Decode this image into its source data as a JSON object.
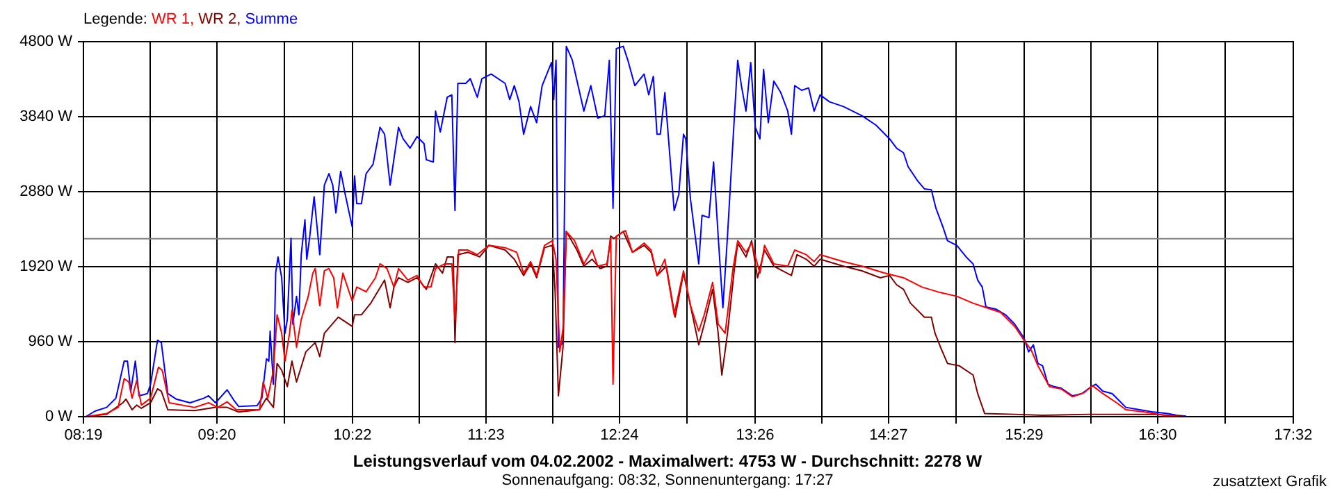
{
  "chart_data": {
    "type": "line",
    "title": "Leistungsverlauf vom 04.02.2002 - Maximalwert: 4753 W - Durchschnitt: 2278 W",
    "subtitle": "Sonnenaufgang: 08:32, Sonnenuntergang: 17:27",
    "legend_title": "Legende:",
    "annotations": [
      "zusatztext Grafik"
    ],
    "legend": "top left",
    "grid": true,
    "marker": "none",
    "line_style": "solid",
    "xlim": [
      8.3167,
      17.5333
    ],
    "xticks": [
      {
        "value": 8.3167,
        "label": "08:19"
      },
      {
        "value": 8.825,
        "label": null
      },
      {
        "value": 9.3333,
        "label": "09:20"
      },
      {
        "value": 9.85,
        "label": null
      },
      {
        "value": 10.3667,
        "label": "10:22"
      },
      {
        "value": 10.875,
        "label": null
      },
      {
        "value": 11.3833,
        "label": "11:23"
      },
      {
        "value": 11.8917,
        "label": null
      },
      {
        "value": 12.4,
        "label": "12:24"
      },
      {
        "value": 12.9167,
        "label": null
      },
      {
        "value": 13.4333,
        "label": "13:26"
      },
      {
        "value": 13.9417,
        "label": null
      },
      {
        "value": 14.45,
        "label": "14:27"
      },
      {
        "value": 14.9667,
        "label": null
      },
      {
        "value": 15.4833,
        "label": "15:29"
      },
      {
        "value": 15.9917,
        "label": null
      },
      {
        "value": 16.5,
        "label": "16:30"
      },
      {
        "value": 17.0167,
        "label": null
      },
      {
        "value": 17.5333,
        "label": "17:32"
      }
    ],
    "ylim": [
      0,
      4800
    ],
    "yticks": [
      {
        "value": 0,
        "label": "0 W"
      },
      {
        "value": 960,
        "label": "960 W"
      },
      {
        "value": 1920,
        "label": "1920 W"
      },
      {
        "value": 2880,
        "label": "2880 W"
      },
      {
        "value": 3840,
        "label": "3840 W"
      },
      {
        "value": 4800,
        "label": "4800 W"
      }
    ],
    "ref_lines": [
      {
        "axis": "y",
        "value": 2278,
        "color": "#808080"
      }
    ],
    "series": [
      {
        "name": "WR 1,",
        "color": "#ff0000",
        "x": [
          8.334,
          8.493,
          8.581,
          8.627,
          8.662,
          8.687,
          8.722,
          8.758,
          8.828,
          8.888,
          8.917,
          8.97,
          9.164,
          9.27,
          9.34,
          9.411,
          9.481,
          9.658,
          9.686,
          9.721,
          9.764,
          9.792,
          9.827,
          9.852,
          9.887,
          9.905,
          9.94,
          9.976,
          10.029,
          10.064,
          10.082,
          10.117,
          10.152,
          10.187,
          10.223,
          10.251,
          10.293,
          10.364,
          10.399,
          10.47,
          10.541,
          10.576,
          10.629,
          10.682,
          10.717,
          10.788,
          10.858,
          10.911,
          10.964,
          10.999,
          11.07,
          11.123,
          11.147,
          11.176,
          11.246,
          11.317,
          11.405,
          11.529,
          11.617,
          11.67,
          11.723,
          11.769,
          11.829,
          11.889,
          11.917,
          11.945,
          11.97,
          11.995,
          12.058,
          12.129,
          12.192,
          12.235,
          12.305,
          12.333,
          12.351,
          12.376,
          12.446,
          12.499,
          12.588,
          12.641,
          12.686,
          12.746,
          12.817,
          12.888,
          12.941,
          13.004,
          13.046,
          13.11,
          13.152,
          13.205,
          13.265,
          13.301,
          13.364,
          13.407,
          13.47,
          13.505,
          13.576,
          13.682,
          13.735,
          13.823,
          13.883,
          13.929,
          14.106,
          14.247,
          14.423,
          14.564,
          14.705,
          14.846,
          14.97,
          15.094,
          15.199,
          15.305,
          15.411,
          15.482,
          15.535,
          15.588,
          15.676,
          15.764,
          15.852,
          15.941,
          16.004,
          16.082,
          16.188,
          16.258,
          16.4,
          16.576,
          16.682
        ],
        "values": [
          0,
          41,
          119,
          486,
          444,
          237,
          462,
          148,
          237,
          634,
          593,
          178,
          119,
          178,
          119,
          190,
          89,
          89,
          444,
          237,
          593,
          1304,
          1067,
          711,
          1067,
          1363,
          889,
          1245,
          1541,
          1837,
          1896,
          1422,
          1867,
          1896,
          1778,
          1393,
          1837,
          1481,
          1659,
          1600,
          1778,
          1956,
          1896,
          1659,
          1896,
          1748,
          1807,
          1659,
          1659,
          1896,
          1956,
          1956,
          1244,
          2133,
          2133,
          2074,
          2193,
          2163,
          2104,
          1837,
          1985,
          1807,
          2193,
          2252,
          2015,
          830,
          1126,
          2370,
          2252,
          1956,
          2133,
          1926,
          1956,
          2282,
          415,
          2311,
          2382,
          2104,
          2222,
          2133,
          1807,
          2015,
          1304,
          1867,
          1422,
          1096,
          1304,
          1719,
          1185,
          1067,
          1896,
          2252,
          2104,
          2222,
          1837,
          2193,
          1956,
          1926,
          2133,
          2074,
          1985,
          2074,
          1985,
          1926,
          1837,
          1778,
          1659,
          1588,
          1541,
          1452,
          1393,
          1333,
          1156,
          978,
          859,
          652,
          385,
          356,
          255,
          308,
          397,
          296,
          178,
          89,
          59,
          12,
          0
        ]
      },
      {
        "name": "WR 2,",
        "color": "#800000",
        "x": [
          8.334,
          8.493,
          8.617,
          8.641,
          8.687,
          8.722,
          8.758,
          8.828,
          8.881,
          8.91,
          8.959,
          9.164,
          9.323,
          9.411,
          9.499,
          9.658,
          9.711,
          9.764,
          9.792,
          9.827,
          9.87,
          9.905,
          9.94,
          10.011,
          10.082,
          10.117,
          10.152,
          10.258,
          10.364,
          10.382,
          10.434,
          10.505,
          10.611,
          10.653,
          10.682,
          10.717,
          10.788,
          10.858,
          10.929,
          10.999,
          11.052,
          11.088,
          11.134,
          11.147,
          11.169,
          11.246,
          11.335,
          11.405,
          11.529,
          11.599,
          11.67,
          11.723,
          11.769,
          11.829,
          11.889,
          11.91,
          11.935,
          11.97,
          11.995,
          12.076,
          12.129,
          12.192,
          12.252,
          12.305,
          12.333,
          12.358,
          12.429,
          12.499,
          12.588,
          12.641,
          12.686,
          12.757,
          12.824,
          12.888,
          12.941,
          13.004,
          13.046,
          13.11,
          13.152,
          13.18,
          13.223,
          13.276,
          13.301,
          13.364,
          13.407,
          13.452,
          13.505,
          13.576,
          13.71,
          13.752,
          13.823,
          13.883,
          13.929,
          14.106,
          14.247,
          14.388,
          14.458,
          14.511,
          14.564,
          14.617,
          14.67,
          14.723,
          14.776,
          14.804,
          14.846,
          14.899,
          14.988,
          15.094,
          15.129,
          15.182,
          15.411,
          15.623,
          15.976,
          16.47,
          16.647,
          16.717
        ],
        "values": [
          0,
          30,
          178,
          225,
          89,
          148,
          107,
          178,
          356,
          326,
          89,
          77,
          119,
          119,
          59,
          89,
          237,
          119,
          681,
          593,
          385,
          711,
          444,
          830,
          948,
          770,
          1067,
          1274,
          1156,
          1304,
          1304,
          1452,
          1748,
          1393,
          1659,
          1778,
          1719,
          1778,
          1630,
          1956,
          1837,
          2045,
          2045,
          948,
          2074,
          2104,
          2045,
          2193,
          2133,
          2015,
          1807,
          1956,
          1778,
          2163,
          2193,
          1600,
          267,
          889,
          2370,
          2133,
          1926,
          2015,
          1896,
          1926,
          2311,
          2282,
          2370,
          2104,
          2193,
          2104,
          1807,
          1926,
          1274,
          1837,
          1422,
          919,
          1185,
          1630,
          1067,
          533,
          1067,
          1896,
          2222,
          2045,
          2252,
          1778,
          2133,
          1926,
          1807,
          2074,
          2015,
          1926,
          2015,
          1926,
          1867,
          1778,
          1807,
          1689,
          1630,
          1452,
          1363,
          1274,
          1274,
          1067,
          889,
          681,
          652,
          533,
          296,
          41,
          30,
          18,
          30,
          30,
          12,
          0
        ]
      },
      {
        "name": "Summe",
        "color": "#0000ff",
        "x": [
          8.334,
          8.405,
          8.493,
          8.564,
          8.627,
          8.652,
          8.677,
          8.712,
          8.74,
          8.804,
          8.828,
          8.881,
          8.91,
          8.959,
          9.023,
          9.129,
          9.234,
          9.27,
          9.323,
          9.411,
          9.464,
          9.499,
          9.64,
          9.676,
          9.711,
          9.729,
          9.739,
          9.764,
          9.781,
          9.799,
          9.827,
          9.852,
          9.87,
          9.898,
          9.912,
          9.94,
          9.958,
          9.976,
          10.004,
          10.018,
          10.039,
          10.074,
          10.117,
          10.152,
          10.187,
          10.216,
          10.24,
          10.276,
          10.311,
          10.364,
          10.382,
          10.399,
          10.434,
          10.47,
          10.523,
          10.576,
          10.611,
          10.653,
          10.717,
          10.752,
          10.805,
          10.858,
          10.911,
          10.929,
          10.982,
          10.999,
          11.035,
          11.088,
          11.123,
          11.147,
          11.169,
          11.229,
          11.264,
          11.317,
          11.352,
          11.423,
          11.529,
          11.564,
          11.599,
          11.635,
          11.67,
          11.723,
          11.769,
          11.811,
          11.882,
          11.899,
          11.917,
          11.935,
          11.97,
          11.995,
          12.041,
          12.093,
          12.129,
          12.182,
          12.235,
          12.288,
          12.323,
          12.351,
          12.376,
          12.429,
          12.464,
          12.517,
          12.588,
          12.623,
          12.658,
          12.686,
          12.711,
          12.746,
          12.817,
          12.852,
          12.888,
          12.905,
          12.941,
          13.004,
          13.029,
          13.082,
          13.117,
          13.152,
          13.188,
          13.223,
          13.276,
          13.301,
          13.329,
          13.364,
          13.4,
          13.435,
          13.47,
          13.498,
          13.534,
          13.576,
          13.629,
          13.682,
          13.71,
          13.735,
          13.788,
          13.841,
          13.883,
          13.929,
          14.0,
          14.106,
          14.247,
          14.353,
          14.458,
          14.511,
          14.564,
          14.599,
          14.67,
          14.723,
          14.776,
          14.811,
          14.864,
          14.899,
          14.97,
          15.041,
          15.094,
          15.129,
          15.164,
          15.192,
          15.27,
          15.341,
          15.411,
          15.482,
          15.517,
          15.553,
          15.588,
          15.623,
          15.665,
          15.711,
          15.764,
          15.852,
          15.923,
          15.994,
          16.029,
          16.082,
          16.153,
          16.206,
          16.258,
          16.364,
          16.47,
          16.576,
          16.647,
          16.717
        ],
        "values": [
          0,
          71,
          119,
          237,
          711,
          711,
          326,
          711,
          267,
          296,
          415,
          978,
          948,
          296,
          225,
          178,
          237,
          267,
          178,
          344,
          207,
          130,
          142,
          237,
          741,
          711,
          1096,
          415,
          1837,
          2045,
          1778,
          1067,
          1245,
          2282,
          1185,
          1541,
          1304,
          2074,
          2519,
          2015,
          2282,
          2815,
          2074,
          2963,
          3111,
          2963,
          2608,
          3141,
          2845,
          2430,
          3082,
          2726,
          2726,
          3111,
          3230,
          3704,
          3615,
          2963,
          3704,
          3556,
          3437,
          3585,
          3496,
          3289,
          3259,
          3911,
          3645,
          4089,
          4119,
          2637,
          4267,
          4267,
          4326,
          4089,
          4326,
          4385,
          4267,
          4059,
          4237,
          4030,
          3615,
          3970,
          3763,
          4237,
          4533,
          4059,
          4563,
          889,
          948,
          4741,
          4563,
          4178,
          3911,
          4237,
          3822,
          3852,
          4563,
          2667,
          4711,
          4741,
          4563,
          4237,
          4385,
          4119,
          4356,
          3615,
          3615,
          4148,
          2637,
          2845,
          3615,
          3556,
          2785,
          1956,
          2578,
          2548,
          3259,
          2311,
          1393,
          2311,
          3852,
          4563,
          4237,
          3911,
          4533,
          3704,
          3556,
          4445,
          3763,
          4296,
          4148,
          3911,
          3615,
          4237,
          4178,
          4208,
          3911,
          4119,
          4030,
          3970,
          3852,
          3733,
          3556,
          3437,
          3378,
          3200,
          3022,
          2916,
          2904,
          2667,
          2430,
          2252,
          2193,
          2045,
          1956,
          1748,
          1659,
          1404,
          1375,
          1304,
          1185,
          1007,
          830,
          919,
          681,
          652,
          415,
          385,
          367,
          267,
          296,
          385,
          415,
          326,
          296,
          207,
          119,
          89,
          59,
          41,
          18,
          6
        ]
      }
    ]
  }
}
